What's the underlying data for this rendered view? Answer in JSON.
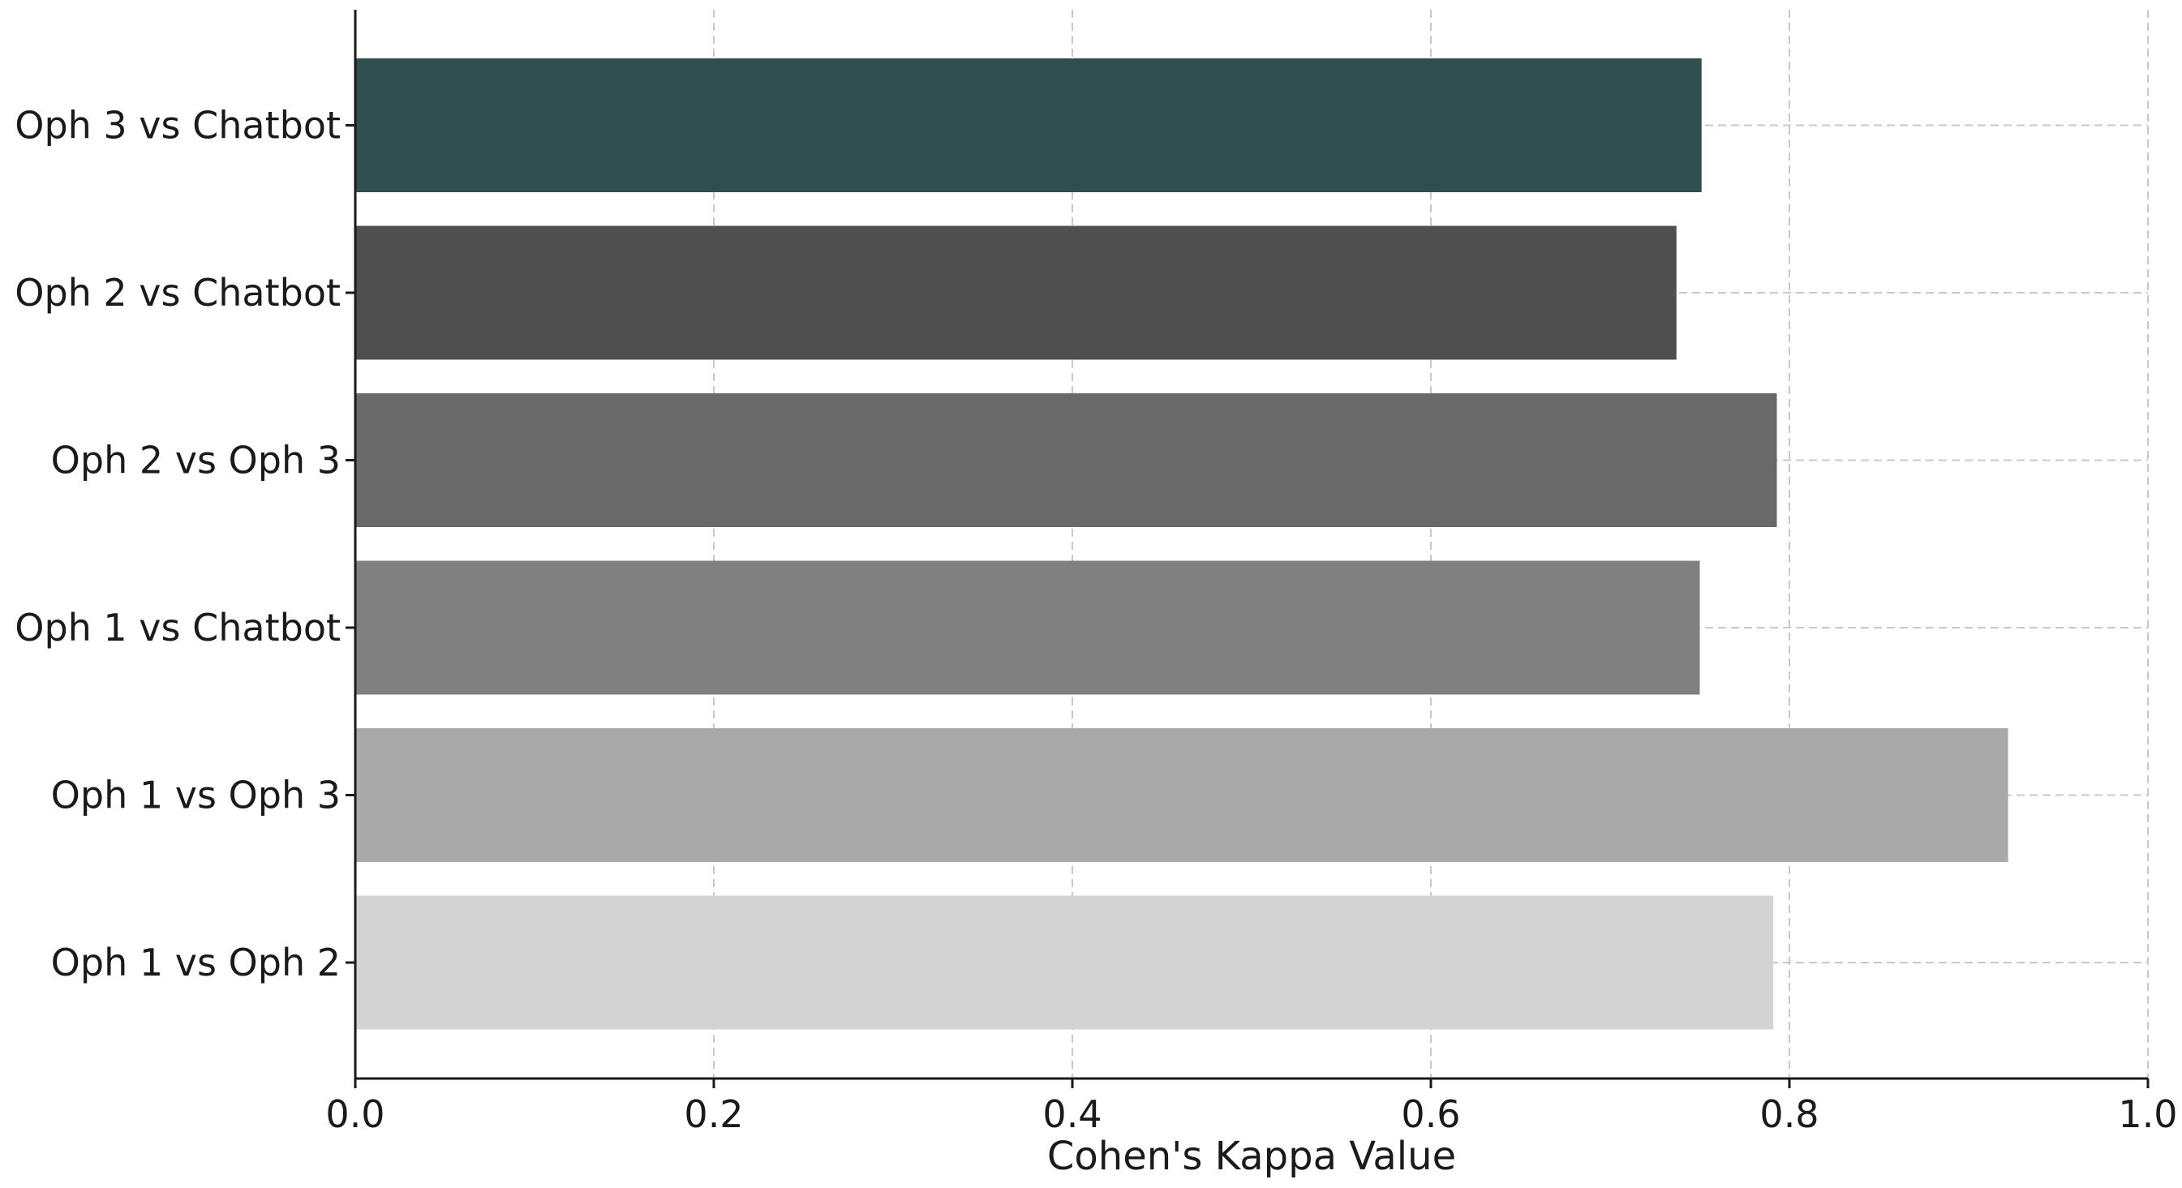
{
  "chart_data": {
    "type": "bar",
    "orientation": "horizontal",
    "categories": [
      "Oph 1 vs Oph 2",
      "Oph 1 vs Oph 3",
      "Oph 1 vs Chatbot",
      "Oph 2 vs Oph 3",
      "Oph 2 vs Chatbot",
      "Oph 3 vs Chatbot"
    ],
    "values": [
      0.791,
      0.922,
      0.75,
      0.793,
      0.737,
      0.751
    ],
    "colors": [
      "#d3d3d3",
      "#a9a9a9",
      "#808080",
      "#696969",
      "#4f4f4f",
      "#2f4f4f"
    ],
    "title": "",
    "xlabel": "Cohen's Kappa Value",
    "ylabel": "",
    "xlim": [
      0.0,
      1.0
    ],
    "xticks": [
      "0.0",
      "0.2",
      "0.4",
      "0.6",
      "0.8",
      "1.0"
    ],
    "grid": true,
    "legend": null
  }
}
